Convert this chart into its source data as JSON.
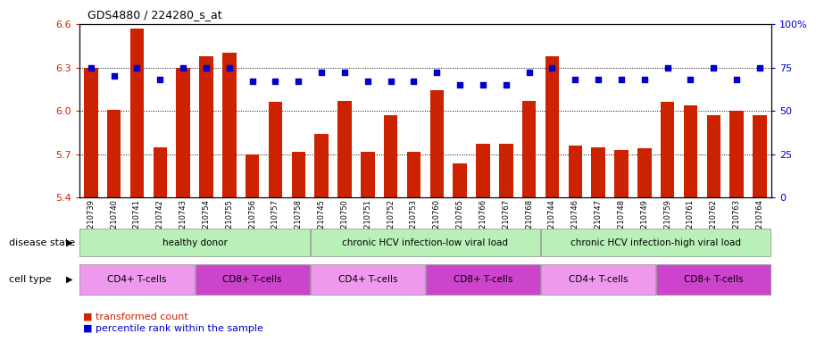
{
  "title": "GDS4880 / 224280_s_at",
  "samples": [
    "GSM1210739",
    "GSM1210740",
    "GSM1210741",
    "GSM1210742",
    "GSM1210743",
    "GSM1210754",
    "GSM1210755",
    "GSM1210756",
    "GSM1210757",
    "GSM1210758",
    "GSM1210745",
    "GSM1210750",
    "GSM1210751",
    "GSM1210752",
    "GSM1210753",
    "GSM1210760",
    "GSM1210765",
    "GSM1210766",
    "GSM1210767",
    "GSM1210768",
    "GSM1210744",
    "GSM1210746",
    "GSM1210747",
    "GSM1210748",
    "GSM1210749",
    "GSM1210759",
    "GSM1210761",
    "GSM1210762",
    "GSM1210763",
    "GSM1210764"
  ],
  "bar_values": [
    6.3,
    6.01,
    6.57,
    5.75,
    6.3,
    6.38,
    6.4,
    5.7,
    6.06,
    5.72,
    5.84,
    6.07,
    5.72,
    5.97,
    5.72,
    6.14,
    5.64,
    5.77,
    5.77,
    6.07,
    6.38,
    5.76,
    5.75,
    5.73,
    5.74,
    6.06,
    6.04,
    5.97,
    6.0,
    5.97
  ],
  "percentile_values": [
    75,
    70,
    75,
    68,
    75,
    75,
    75,
    67,
    67,
    67,
    72,
    72,
    67,
    67,
    67,
    72,
    65,
    65,
    65,
    72,
    75,
    68,
    68,
    68,
    68,
    75,
    68,
    75,
    68,
    75
  ],
  "ylim_left": [
    5.4,
    6.6
  ],
  "ylim_right": [
    0,
    100
  ],
  "yticks_left": [
    5.4,
    5.7,
    6.0,
    6.3,
    6.6
  ],
  "yticks_right": [
    0,
    25,
    50,
    75,
    100
  ],
  "bar_color": "#cc2200",
  "percentile_color": "#0000cc",
  "ds_colors": [
    "#b8f0b8",
    "#b8f0b8",
    "#b8f0b8"
  ],
  "ds_labels": [
    "healthy donor",
    "chronic HCV infection-low viral load",
    "chronic HCV infection-high viral load"
  ],
  "ds_ranges": [
    [
      0,
      9
    ],
    [
      10,
      19
    ],
    [
      20,
      29
    ]
  ],
  "ct_ranges": [
    [
      0,
      4
    ],
    [
      5,
      9
    ],
    [
      10,
      14
    ],
    [
      15,
      19
    ],
    [
      20,
      24
    ],
    [
      25,
      29
    ]
  ],
  "ct_colors": [
    "#ee99ee",
    "#cc44cc",
    "#ee99ee",
    "#cc44cc",
    "#ee99ee",
    "#cc44cc"
  ],
  "ct_labels": [
    "CD4+ T-cells",
    "CD8+ T-cells",
    "CD4+ T-cells",
    "CD8+ T-cells",
    "CD4+ T-cells",
    "CD8+ T-cells"
  ],
  "disease_state_label": "disease state",
  "cell_type_label": "cell type",
  "legend_bar": "transformed count",
  "legend_dot": "percentile rank within the sample"
}
